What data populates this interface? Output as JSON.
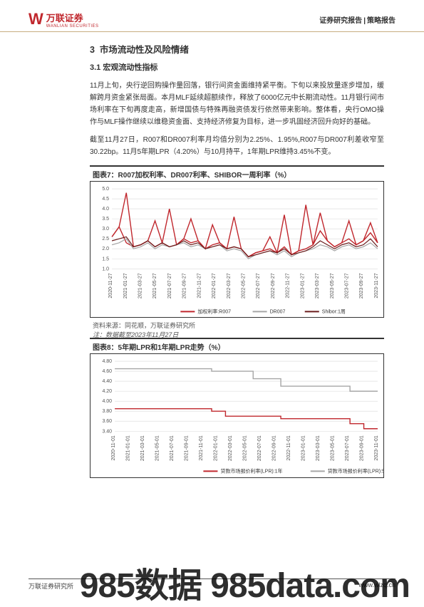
{
  "header": {
    "logo_cn": "万联证券",
    "logo_en": "WANLIAN SECURITIES",
    "right_left": "证券研究报告",
    "right_right": "策略报告"
  },
  "section": {
    "num": "3",
    "title": "市场流动性及风险情绪",
    "sub_num": "3.1",
    "sub_title": "宏观流动性指标"
  },
  "para1": "11月上旬，央行逆回购操作量回落，银行间资金面维持紧平衡。下旬以来投放量逐步增加，缓解跨月资金紧张局面。本月MLF延续超额续作，释放了6000亿元中长期流动性。11月银行间市场利率在下旬再度走高，新增国债与特殊再融资债发行依然带来影响。整体看，央行OMO操作与MLF操作继续以维稳资金面、支持经济修复为目标，进一步巩固经济回升向好的基础。",
  "para2": "截至11月27日，R007和DR007利率月均值分别为2.25%、1.95%,R007与DR007利差收窄至30.22bp。11月5年期LPR（4.20%）与10月持平，1年期LPR维持3.45%不变。",
  "chart7": {
    "title": "图表7：R007加权利率、DR007利率、SHIBOR一周利率（%）",
    "source": "资料来源：同花顺，万联证券研究所",
    "note": "注：数据截至2023年11月27日",
    "type": "line",
    "background_color": "#ffffff",
    "grid_color": "#d9d9d9",
    "xlabels": [
      "2020-11-27",
      "2021-01-27",
      "2021-03-27",
      "2021-05-27",
      "2021-07-27",
      "2021-09-27",
      "2021-11-27",
      "2022-01-27",
      "2022-03-27",
      "2022-05-27",
      "2022-07-27",
      "2022-09-27",
      "2022-11-27",
      "2023-01-27",
      "2023-03-27",
      "2023-05-27",
      "2023-07-27",
      "2023-09-27",
      "2023-11-27"
    ],
    "ylim": [
      1.0,
      5.0
    ],
    "ytick_step": 0.5,
    "label_fontsize": 7,
    "series": [
      {
        "name": "加权利率:R007",
        "color": "#c0272d",
        "width": 1.4,
        "values": [
          2.6,
          3.1,
          2.3,
          2.1,
          2.2,
          2.4,
          2.1,
          2.3,
          2.1,
          2.2,
          2.5,
          2.3,
          2.4,
          2.0,
          2.2,
          2.3,
          2.0,
          2.1,
          2.0,
          1.6,
          1.8,
          1.9,
          2.0,
          1.8,
          2.1,
          1.7,
          1.9,
          2.0,
          2.2,
          2.9,
          2.4,
          2.1,
          2.3,
          2.5,
          2.2,
          2.4,
          2.8,
          2.3
        ]
      },
      {
        "name": "DR007",
        "color": "#a6a6a6",
        "width": 1.2,
        "values": [
          2.2,
          2.3,
          2.5,
          2.0,
          2.1,
          2.3,
          2.0,
          2.2,
          2.1,
          2.2,
          2.3,
          2.1,
          2.2,
          2.0,
          2.1,
          2.2,
          1.9,
          2.0,
          1.9,
          1.5,
          1.7,
          1.8,
          1.9,
          1.7,
          1.9,
          1.6,
          1.8,
          1.9,
          2.0,
          2.2,
          2.1,
          1.9,
          2.1,
          2.2,
          2.0,
          2.1,
          2.3,
          2.0
        ]
      },
      {
        "name": "Shibor:1周",
        "color": "#6b1d1d",
        "width": 1.2,
        "values": [
          2.4,
          2.5,
          2.6,
          2.1,
          2.2,
          2.4,
          2.1,
          2.3,
          2.1,
          2.2,
          2.4,
          2.2,
          2.3,
          2.0,
          2.1,
          2.2,
          2.0,
          2.1,
          2.0,
          1.6,
          1.7,
          1.8,
          1.9,
          1.8,
          2.0,
          1.7,
          1.8,
          1.9,
          2.1,
          2.4,
          2.2,
          2.0,
          2.2,
          2.3,
          2.1,
          2.2,
          2.5,
          2.1
        ]
      }
    ],
    "spikes_r007": [
      {
        "i": 2,
        "v": 4.8
      },
      {
        "i": 6,
        "v": 3.4
      },
      {
        "i": 8,
        "v": 4.0
      },
      {
        "i": 11,
        "v": 3.5
      },
      {
        "i": 14,
        "v": 3.2
      },
      {
        "i": 17,
        "v": 3.6
      },
      {
        "i": 22,
        "v": 2.6
      },
      {
        "i": 24,
        "v": 3.7
      },
      {
        "i": 27,
        "v": 4.2
      },
      {
        "i": 29,
        "v": 3.8
      },
      {
        "i": 33,
        "v": 3.4
      },
      {
        "i": 36,
        "v": 3.3
      }
    ]
  },
  "chart8": {
    "title": "图表8：5年期LPR和1年期LPR走势（%）",
    "type": "step-line",
    "background_color": "#ffffff",
    "grid_color": "#d9d9d9",
    "xlabels": [
      "2020-11-01",
      "2021-01-01",
      "2021-03-01",
      "2021-05-01",
      "2021-07-01",
      "2021-09-01",
      "2021-11-01",
      "2022-01-01",
      "2022-03-01",
      "2022-05-01",
      "2022-07-01",
      "2022-09-01",
      "2022-11-01",
      "2023-01-01",
      "2023-03-01",
      "2023-05-01",
      "2023-07-01",
      "2023-09-01",
      "2023-11-01"
    ],
    "ylim": [
      3.4,
      4.8
    ],
    "ytick_step": 0.2,
    "label_fontsize": 7,
    "series": [
      {
        "name": "贷款市场报价利率(LPR):1年",
        "color": "#c0272d",
        "width": 1.4,
        "values": [
          3.85,
          3.85,
          3.85,
          3.85,
          3.85,
          3.85,
          3.85,
          3.8,
          3.7,
          3.7,
          3.7,
          3.7,
          3.65,
          3.65,
          3.65,
          3.65,
          3.65,
          3.55,
          3.45,
          3.45
        ]
      },
      {
        "name": "贷款市场报价利率(LPR):5年",
        "color": "#a6a6a6",
        "width": 1.4,
        "values": [
          4.65,
          4.65,
          4.65,
          4.65,
          4.65,
          4.65,
          4.65,
          4.6,
          4.6,
          4.6,
          4.45,
          4.45,
          4.3,
          4.3,
          4.3,
          4.3,
          4.3,
          4.2,
          4.2,
          4.2
        ]
      }
    ]
  },
  "footer": {
    "left": "万联证券研究所",
    "url": "www.wlzq.cn",
    "watermark": "985数据 985data.com"
  }
}
